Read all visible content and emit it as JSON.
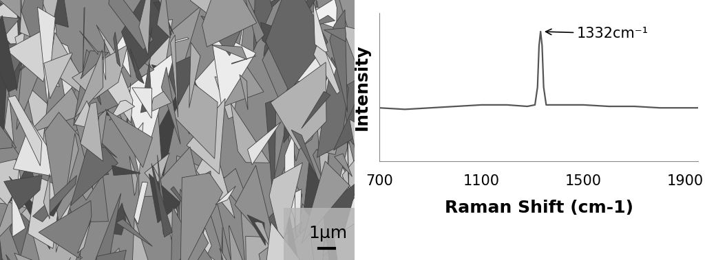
{
  "micrograph": {
    "scale_bar_label": "1µm"
  },
  "chart_data": {
    "type": "line",
    "x_label": "Raman Shift (cm-1)",
    "y_label": "Intensity",
    "annotation": "1332cm⁻¹",
    "x": [
      700,
      800,
      900,
      1000,
      1100,
      1200,
      1280,
      1310,
      1320,
      1326,
      1332,
      1338,
      1344,
      1354,
      1400,
      1500,
      1600,
      1700,
      1800,
      1900,
      1950
    ],
    "values": [
      0.36,
      0.35,
      0.36,
      0.37,
      0.38,
      0.38,
      0.37,
      0.38,
      0.5,
      0.78,
      0.875,
      0.78,
      0.5,
      0.38,
      0.38,
      0.38,
      0.37,
      0.37,
      0.36,
      0.36,
      0.36
    ],
    "color": "#555555",
    "xlim": [
      700,
      1950
    ],
    "xticks": [
      700,
      1100,
      1500,
      1900
    ],
    "ylim": [
      0,
      1
    ],
    "tick_labels": "x",
    "grid": false
  }
}
